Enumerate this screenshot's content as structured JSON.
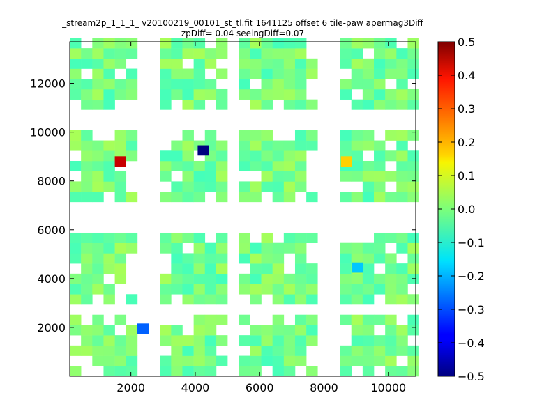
{
  "chart_data": {
    "type": "heatmap",
    "title": "_stream2p_1_1_1_ v20100219_00101_st_tl.fit 1641125 offset 6 tile-paw apermag3Diff",
    "subtitle": "zpDiff= 0.04 seeingDiff=0.07",
    "xlabel": "",
    "ylabel": "",
    "xlim": [
      100,
      10850
    ],
    "ylim": [
      0,
      13700
    ],
    "x_ticks": [
      "2000",
      "4000",
      "6000",
      "8000",
      "10000"
    ],
    "y_ticks": [
      "2000",
      "4000",
      "6000",
      "8000",
      "10000",
      "12000"
    ],
    "colorbar": {
      "colormap": "jet",
      "range": [
        -0.5,
        0.5
      ],
      "ticks": [
        "0.5",
        "0.4",
        "0.3",
        "0.2",
        "0.1",
        "0.0",
        "−0.1",
        "−0.2",
        "−0.3",
        "−0.4",
        "−0.5"
      ]
    },
    "cell_size": [
      350,
      420
    ],
    "column_x_centers": [
      275,
      625,
      975,
      1325,
      1675,
      2025,
      2375,
      2725,
      3075,
      3425,
      3775,
      4125,
      4475,
      4825,
      5175,
      5525,
      5875,
      6225,
      6575,
      6925,
      7275,
      7625,
      7975,
      8325,
      8675,
      9025,
      9375,
      9725,
      10075,
      10425,
      10775
    ],
    "row_y_centers": [
      210,
      630,
      1050,
      1470,
      1890,
      2310,
      2730,
      3150,
      3570,
      3990,
      4410,
      4830,
      5250,
      5670,
      6090,
      6510,
      6930,
      7350,
      7770,
      8190,
      8610,
      9030,
      9450,
      9870,
      10290,
      10710,
      11130,
      11550,
      11970,
      12390,
      12810,
      13230,
      13650
    ],
    "notable_cells": [
      {
        "x": 1675,
        "y": 8800,
        "value": 0.43
      },
      {
        "x": 4250,
        "y": 9250,
        "value": -0.5
      },
      {
        "x": 2375,
        "y": 1950,
        "value": -0.28
      },
      {
        "x": 8700,
        "y": 8800,
        "value": 0.17
      },
      {
        "x": 9050,
        "y": 4450,
        "value": -0.18
      }
    ]
  }
}
